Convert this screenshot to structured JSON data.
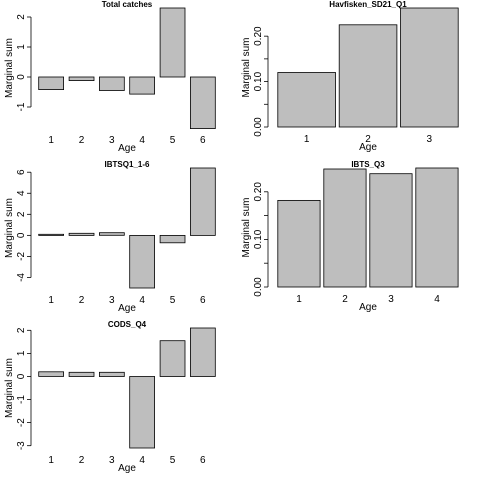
{
  "chart_data": [
    {
      "type": "bar",
      "title": "Total catches",
      "xlabel": "Age",
      "ylabel": "Marginal sum",
      "categories": [
        "1",
        "2",
        "3",
        "4",
        "5",
        "6"
      ],
      "values": [
        -0.42,
        -0.12,
        -0.45,
        -0.57,
        2.3,
        -1.72
      ],
      "ylim": [
        -1.7,
        2.3
      ],
      "yticks": [
        -1,
        0,
        1,
        2
      ]
    },
    {
      "type": "bar",
      "title": "Havfisken_SD21_Q1",
      "xlabel": "Age",
      "ylabel": "Marginal sum",
      "categories": [
        "1",
        "2",
        "3"
      ],
      "values": [
        0.12,
        0.225,
        0.262
      ],
      "ylim": [
        0,
        0.262
      ],
      "yticks": [
        0.0,
        0.1,
        0.2
      ],
      "yticklabels": [
        "0.00",
        "0.10",
        "0.20"
      ]
    },
    {
      "type": "bar",
      "title": "IBTSQ1_1-6",
      "xlabel": "Age",
      "ylabel": "Marginal sum",
      "categories": [
        "1",
        "2",
        "3",
        "4",
        "5",
        "6"
      ],
      "values": [
        0.1,
        0.2,
        0.25,
        -5.0,
        -0.7,
        6.4
      ],
      "ylim": [
        -5.0,
        6.4
      ],
      "yticks": [
        -4,
        -2,
        0,
        2,
        4,
        6
      ]
    },
    {
      "type": "bar",
      "title": "IBTS_Q3",
      "xlabel": "Age",
      "ylabel": "Marginal sum",
      "categories": [
        "1",
        "2",
        "3",
        "4"
      ],
      "values": [
        0.182,
        0.248,
        0.238,
        0.25
      ],
      "ylim": [
        0,
        0.25
      ],
      "yticks": [
        0.0,
        0.1,
        0.2
      ],
      "yticklabels": [
        "0.00",
        "0.10",
        "0.20"
      ]
    },
    {
      "type": "bar",
      "title": "CODS_Q4",
      "xlabel": "Age",
      "ylabel": "Marginal sum",
      "categories": [
        "1",
        "2",
        "3",
        "4",
        "5",
        "6"
      ],
      "values": [
        0.2,
        0.18,
        0.18,
        -3.1,
        1.55,
        2.1
      ],
      "ylim": [
        -3.1,
        2.1
      ],
      "yticks": [
        -3,
        -2,
        -1,
        0,
        1,
        2
      ]
    }
  ],
  "colors": {
    "bar_fill": "#bebebe",
    "bar_stroke": "#000000"
  }
}
